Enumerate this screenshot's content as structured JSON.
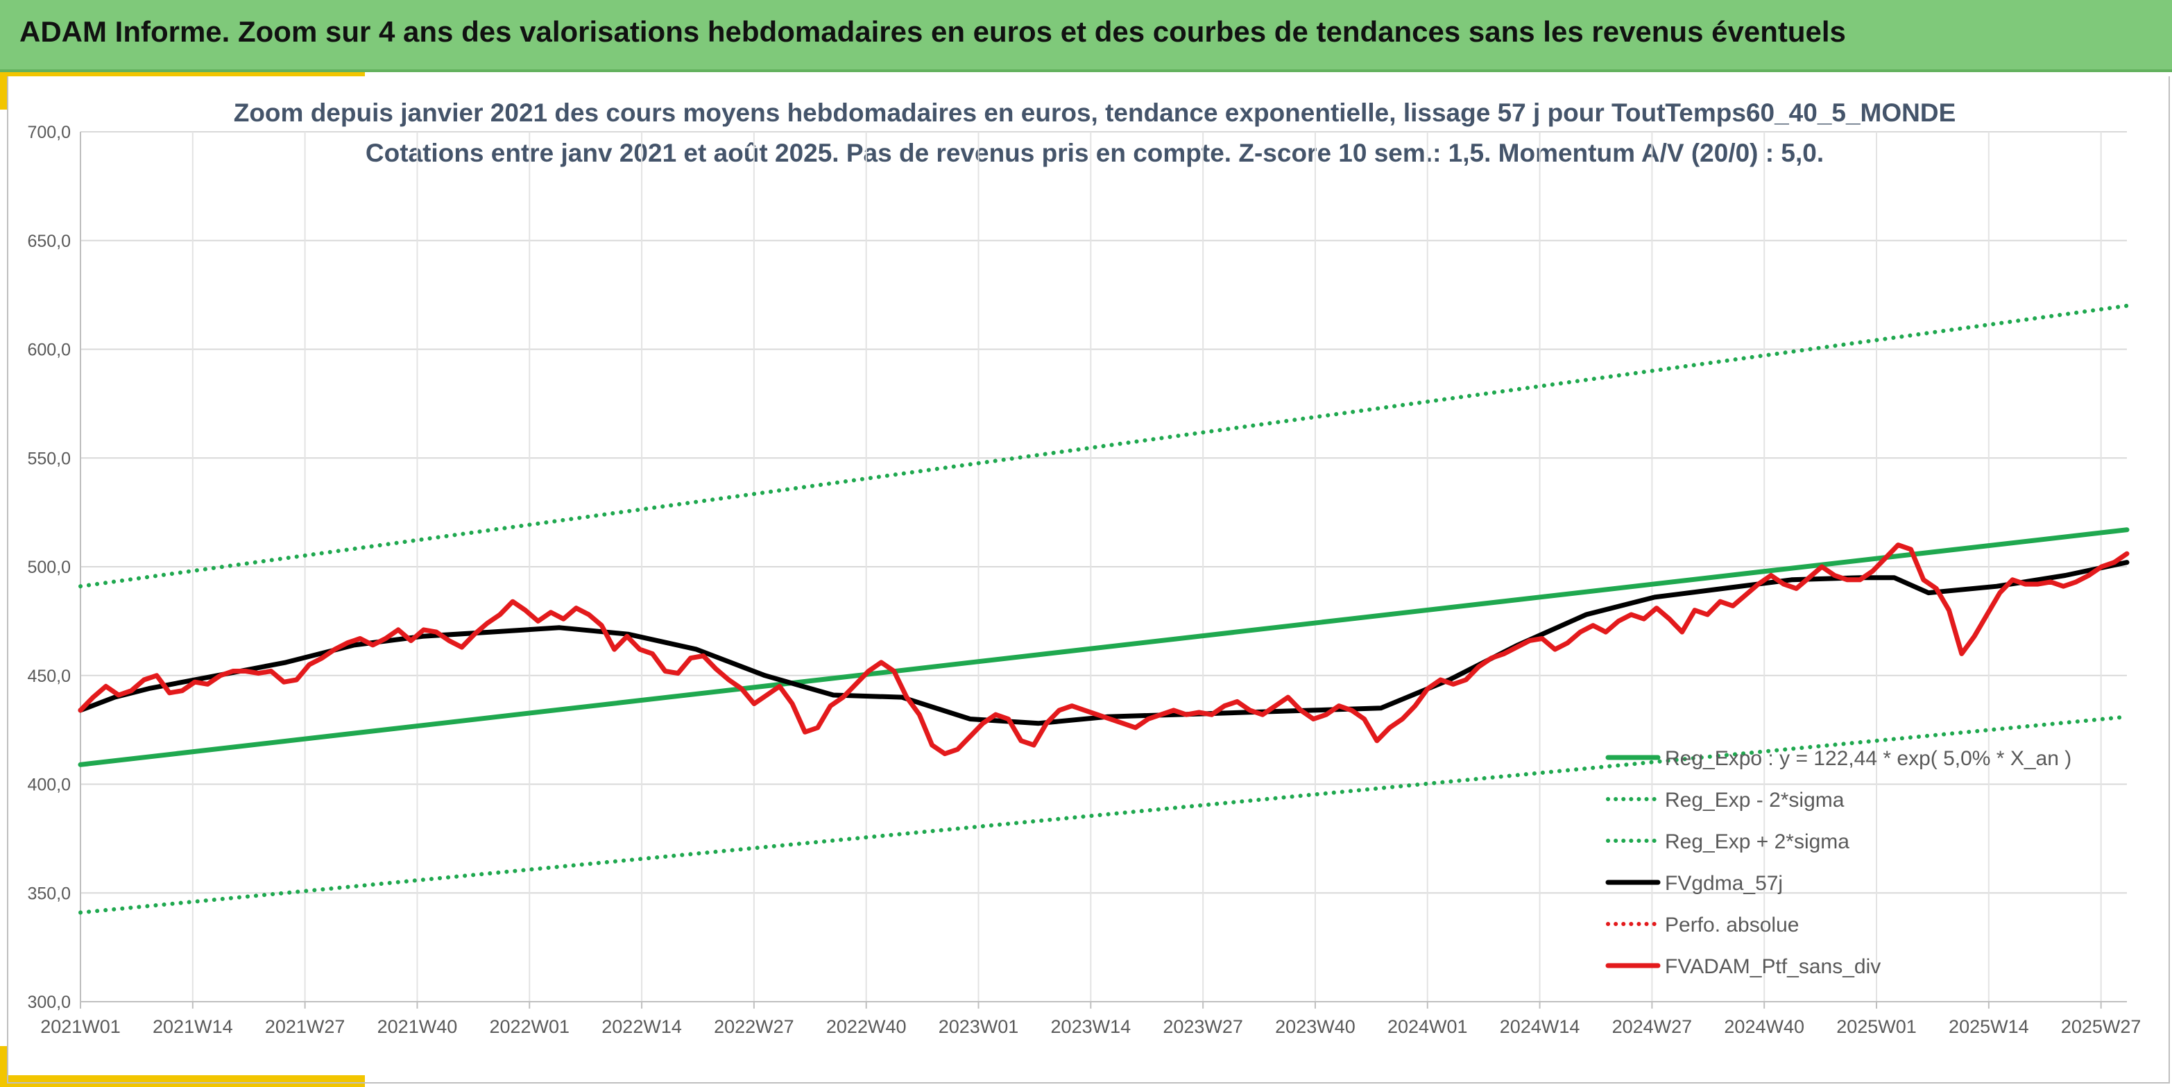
{
  "header": {
    "title": "ADAM Informe. Zoom sur 4 ans des valorisations hebdomadaires en euros et des courbes de tendances sans les revenus éventuels"
  },
  "chart_data": {
    "type": "line",
    "title": "Zoom depuis janvier 2021 des cours moyens hebdomadaires en euros, tendance exponentielle, lissage 57 j pour ToutTemps60_40_5_MONDE",
    "subtitle": "Cotations entre janv 2021 et août 2025. Pas de revenus pris en compte. Z-score 10 sem.: 1,5. Momentum A/V (20/0) : 5,0.",
    "xlabel": "",
    "ylabel": "",
    "ylim": [
      300,
      700
    ],
    "yticks": [
      "300,0",
      "350,0",
      "400,0",
      "450,0",
      "500,0",
      "550,0",
      "600,0",
      "650,0",
      "700,0"
    ],
    "xticks": [
      "2021W01",
      "2021W14",
      "2021W27",
      "2021W40",
      "2022W01",
      "2022W14",
      "2022W27",
      "2022W40",
      "2023W01",
      "2023W14",
      "2023W27",
      "2023W40",
      "2024W01",
      "2024W14",
      "2024W27",
      "2024W40",
      "2025W01",
      "2025W14",
      "2025W27"
    ],
    "week_count": 237,
    "grid": true,
    "legend_position": "bottom-right",
    "series": [
      {
        "name": "Reg_Expo : y = 122,44 * exp( 5,0% * X_an )",
        "color": "#1fa84f",
        "style": "solid",
        "points": [
          [
            0,
            409
          ],
          [
            237,
            517
          ]
        ]
      },
      {
        "name": "Reg_Exp - 2*sigma",
        "color": "#1fa84f",
        "style": "dotted",
        "points": [
          [
            0,
            341
          ],
          [
            237,
            431
          ]
        ]
      },
      {
        "name": "Reg_Exp + 2*sigma",
        "color": "#1fa84f",
        "style": "dotted",
        "points": [
          [
            0,
            491
          ],
          [
            237,
            620
          ]
        ]
      },
      {
        "name": "FVgdma_57j",
        "color": "#000000",
        "style": "solid",
        "points": [
          [
            0,
            434
          ],
          [
            5,
            440
          ],
          [
            10,
            444
          ],
          [
            20,
            450
          ],
          [
            30,
            456
          ],
          [
            40,
            464
          ],
          [
            50,
            468
          ],
          [
            60,
            470
          ],
          [
            70,
            472
          ],
          [
            80,
            469
          ],
          [
            90,
            462
          ],
          [
            100,
            450
          ],
          [
            110,
            441
          ],
          [
            120,
            440
          ],
          [
            130,
            430
          ],
          [
            140,
            428
          ],
          [
            150,
            431
          ],
          [
            160,
            432
          ],
          [
            170,
            433
          ],
          [
            180,
            434
          ],
          [
            190,
            435
          ],
          [
            200,
            448
          ],
          [
            210,
            464
          ],
          [
            220,
            478
          ],
          [
            230,
            486
          ],
          [
            240,
            490
          ],
          [
            250,
            494
          ],
          [
            260,
            495
          ],
          [
            265,
            495
          ],
          [
            270,
            488
          ],
          [
            280,
            491
          ],
          [
            290,
            496
          ],
          [
            299,
            502
          ]
        ]
      },
      {
        "name": "Perfo. absolue",
        "color": "#e31a1c",
        "style": "dotted",
        "points": []
      },
      {
        "name": "FVADAM_Ptf_sans_div",
        "color": "#e31a1c",
        "style": "solid",
        "points": [
          [
            0,
            434
          ],
          [
            2,
            440
          ],
          [
            4,
            445
          ],
          [
            6,
            441
          ],
          [
            8,
            443
          ],
          [
            10,
            448
          ],
          [
            12,
            450
          ],
          [
            14,
            442
          ],
          [
            16,
            443
          ],
          [
            18,
            447
          ],
          [
            20,
            446
          ],
          [
            22,
            450
          ],
          [
            24,
            452
          ],
          [
            26,
            452
          ],
          [
            28,
            451
          ],
          [
            30,
            452
          ],
          [
            32,
            447
          ],
          [
            34,
            448
          ],
          [
            36,
            455
          ],
          [
            38,
            458
          ],
          [
            40,
            462
          ],
          [
            42,
            465
          ],
          [
            44,
            467
          ],
          [
            46,
            464
          ],
          [
            48,
            467
          ],
          [
            50,
            471
          ],
          [
            52,
            466
          ],
          [
            54,
            471
          ],
          [
            56,
            470
          ],
          [
            58,
            466
          ],
          [
            60,
            463
          ],
          [
            62,
            469
          ],
          [
            64,
            474
          ],
          [
            66,
            478
          ],
          [
            68,
            484
          ],
          [
            70,
            480
          ],
          [
            72,
            475
          ],
          [
            74,
            479
          ],
          [
            76,
            476
          ],
          [
            78,
            481
          ],
          [
            80,
            478
          ],
          [
            82,
            473
          ],
          [
            84,
            462
          ],
          [
            86,
            468
          ],
          [
            88,
            462
          ],
          [
            90,
            460
          ],
          [
            92,
            452
          ],
          [
            94,
            451
          ],
          [
            96,
            458
          ],
          [
            98,
            459
          ],
          [
            100,
            453
          ],
          [
            102,
            448
          ],
          [
            104,
            444
          ],
          [
            106,
            437
          ],
          [
            108,
            441
          ],
          [
            110,
            445
          ],
          [
            112,
            437
          ],
          [
            114,
            424
          ],
          [
            116,
            426
          ],
          [
            118,
            436
          ],
          [
            120,
            440
          ],
          [
            122,
            446
          ],
          [
            124,
            452
          ],
          [
            126,
            456
          ],
          [
            128,
            452
          ],
          [
            130,
            440
          ],
          [
            132,
            432
          ],
          [
            134,
            418
          ],
          [
            136,
            414
          ],
          [
            138,
            416
          ],
          [
            140,
            422
          ],
          [
            142,
            428
          ],
          [
            144,
            432
          ],
          [
            146,
            430
          ],
          [
            148,
            420
          ],
          [
            150,
            418
          ],
          [
            152,
            428
          ],
          [
            154,
            434
          ],
          [
            156,
            436
          ],
          [
            158,
            434
          ],
          [
            160,
            432
          ],
          [
            162,
            430
          ],
          [
            164,
            428
          ],
          [
            166,
            426
          ],
          [
            168,
            430
          ],
          [
            170,
            432
          ],
          [
            172,
            434
          ],
          [
            174,
            432
          ],
          [
            176,
            433
          ],
          [
            178,
            432
          ],
          [
            180,
            436
          ],
          [
            182,
            438
          ],
          [
            184,
            434
          ],
          [
            186,
            432
          ],
          [
            188,
            436
          ],
          [
            190,
            440
          ],
          [
            192,
            434
          ],
          [
            194,
            430
          ],
          [
            196,
            432
          ],
          [
            198,
            436
          ],
          [
            200,
            434
          ],
          [
            202,
            430
          ],
          [
            204,
            420
          ],
          [
            206,
            426
          ],
          [
            208,
            430
          ],
          [
            210,
            436
          ],
          [
            212,
            444
          ],
          [
            214,
            448
          ],
          [
            216,
            446
          ],
          [
            218,
            448
          ],
          [
            220,
            454
          ],
          [
            222,
            458
          ],
          [
            224,
            460
          ],
          [
            226,
            463
          ],
          [
            228,
            466
          ],
          [
            230,
            467
          ],
          [
            232,
            462
          ],
          [
            234,
            465
          ],
          [
            236,
            470
          ],
          [
            238,
            473
          ],
          [
            240,
            470
          ],
          [
            242,
            475
          ],
          [
            244,
            478
          ],
          [
            246,
            476
          ],
          [
            248,
            481
          ],
          [
            250,
            476
          ],
          [
            252,
            470
          ],
          [
            254,
            480
          ],
          [
            256,
            478
          ],
          [
            258,
            484
          ],
          [
            260,
            482
          ],
          [
            262,
            487
          ],
          [
            264,
            492
          ],
          [
            266,
            496
          ],
          [
            268,
            492
          ],
          [
            270,
            490
          ],
          [
            272,
            495
          ],
          [
            274,
            500
          ],
          [
            276,
            496
          ],
          [
            278,
            494
          ],
          [
            280,
            494
          ],
          [
            282,
            498
          ],
          [
            284,
            504
          ],
          [
            286,
            510
          ],
          [
            288,
            508
          ],
          [
            290,
            494
          ],
          [
            292,
            490
          ],
          [
            294,
            480
          ],
          [
            296,
            460
          ],
          [
            298,
            468
          ],
          [
            300,
            478
          ],
          [
            302,
            488
          ],
          [
            304,
            494
          ],
          [
            306,
            492
          ],
          [
            308,
            492
          ],
          [
            310,
            493
          ],
          [
            312,
            491
          ],
          [
            314,
            493
          ],
          [
            316,
            496
          ],
          [
            318,
            500
          ],
          [
            320,
            502
          ],
          [
            322,
            506
          ]
        ]
      }
    ]
  }
}
